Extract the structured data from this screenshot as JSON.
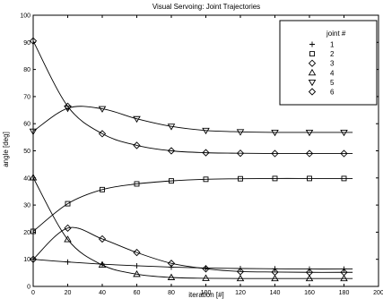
{
  "chart_data": {
    "type": "line",
    "title": "Visual Servoing: Joint Trajectories",
    "xlabel": "iteration [#]",
    "ylabel": "angle [deg]",
    "xlim": [
      0,
      200
    ],
    "ylim": [
      0,
      100
    ],
    "xticks": [
      0,
      20,
      40,
      60,
      80,
      100,
      120,
      140,
      160,
      180,
      200
    ],
    "yticks": [
      0,
      10,
      20,
      30,
      40,
      50,
      60,
      70,
      80,
      90,
      100
    ],
    "grid": false,
    "legend": {
      "title": "joint #",
      "placement": "top-right"
    },
    "series": [
      {
        "name": "1",
        "marker": "plus",
        "x": [
          0,
          20,
          40,
          60,
          80,
          100,
          120,
          140,
          160,
          180
        ],
        "y": [
          10,
          9,
          8.2,
          7.6,
          7.1,
          6.8,
          6.6,
          6.5,
          6.4,
          6.4
        ]
      },
      {
        "name": "2",
        "marker": "square",
        "x": [
          0,
          20,
          40,
          60,
          80,
          100,
          120,
          140,
          160,
          180
        ],
        "y": [
          20.3,
          30.5,
          35.7,
          37.8,
          38.9,
          39.5,
          39.7,
          39.8,
          39.8,
          39.8
        ]
      },
      {
        "name": "3",
        "marker": "diamond",
        "x": [
          0,
          20,
          40,
          60,
          80,
          100,
          120,
          140,
          160,
          180
        ],
        "y": [
          10,
          21.5,
          17.5,
          12.5,
          8.5,
          6.5,
          5.5,
          5.3,
          5.2,
          5.2
        ]
      },
      {
        "name": "4",
        "marker": "triangle-up",
        "x": [
          0,
          20,
          40,
          60,
          80,
          100,
          120,
          140,
          160,
          180
        ],
        "y": [
          40.1,
          17.3,
          7.9,
          4.5,
          3.3,
          3.0,
          2.9,
          2.9,
          2.9,
          2.9
        ]
      },
      {
        "name": "5",
        "marker": "triangle-down",
        "x": [
          0,
          20,
          40,
          60,
          80,
          100,
          120,
          140,
          160,
          180
        ],
        "y": [
          57.2,
          65.7,
          65.5,
          61.8,
          59,
          57.5,
          57,
          56.8,
          56.8,
          56.8
        ]
      },
      {
        "name": "6",
        "marker": "diamond",
        "x": [
          0,
          20,
          40,
          60,
          80,
          100,
          120,
          140,
          160,
          180
        ],
        "y": [
          90.5,
          66.4,
          56.3,
          52,
          50,
          49.3,
          49.1,
          49,
          49,
          49
        ]
      }
    ]
  }
}
